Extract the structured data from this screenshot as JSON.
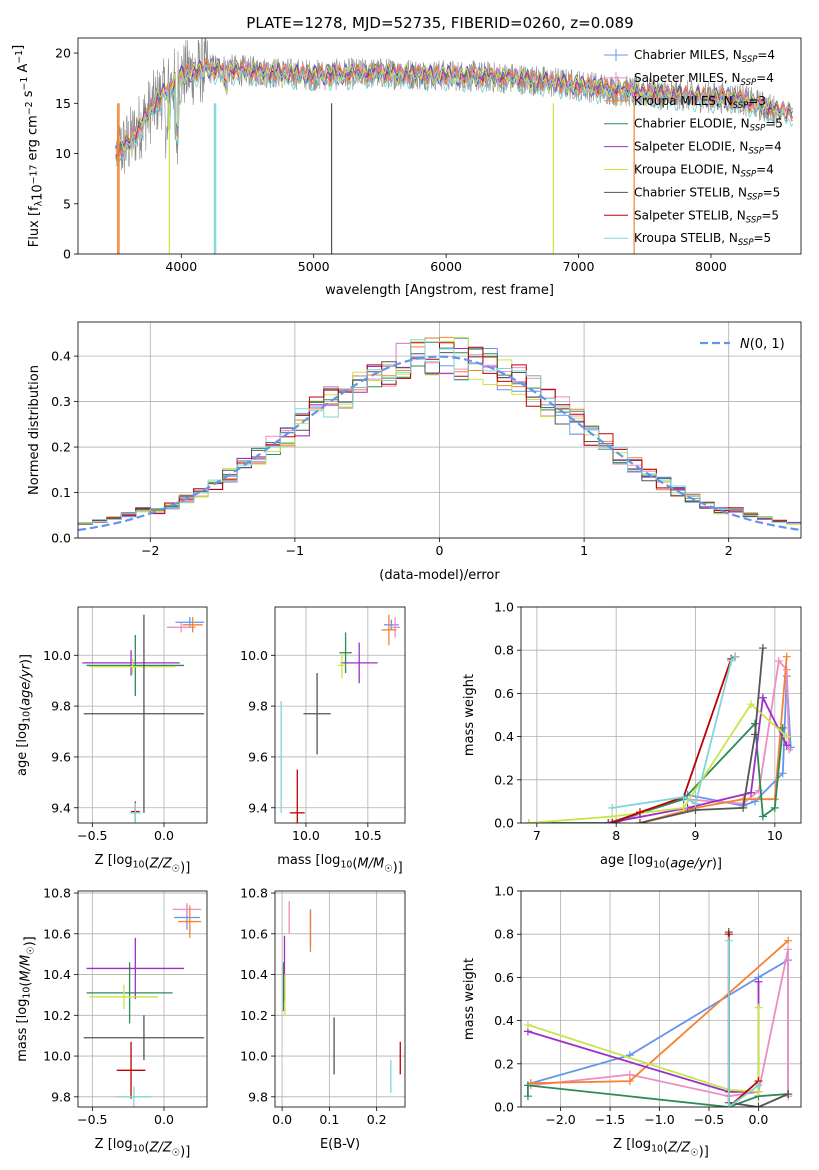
{
  "title": "PLATE=1278, MJD=52735, FIBERID=0260, z=0.089",
  "colors": [
    "#6495ed",
    "#f08dc0",
    "#f58231",
    "#2e8b57",
    "#9b30c8",
    "#c8e645",
    "#555555",
    "#c00000",
    "#80d6d6"
  ],
  "legend": {
    "entries": [
      {
        "name": "Chabrier MILES",
        "nssp": "4"
      },
      {
        "name": "Salpeter MILES",
        "nssp": "4"
      },
      {
        "name": "Kroupa MILES",
        "nssp": "3"
      },
      {
        "name": "Chabrier ELODIE",
        "nssp": "5"
      },
      {
        "name": "Salpeter ELODIE",
        "nssp": "4"
      },
      {
        "name": "Kroupa ELODIE",
        "nssp": "4"
      },
      {
        "name": "Chabrier STELIB",
        "nssp": "5"
      },
      {
        "name": "Salpeter STELIB",
        "nssp": "5"
      },
      {
        "name": "Kroupa STELIB",
        "nssp": "5"
      }
    ]
  },
  "chart_data": [
    {
      "id": "spectrum",
      "type": "line",
      "xlabel": "wavelength [Angstrom, rest frame]",
      "ylabel": "Flux [f",
      "xlim": [
        3220,
        8680
      ],
      "ylim": [
        0,
        21.5
      ],
      "xticks": [
        4000,
        5000,
        6000,
        7000,
        8000
      ],
      "yticks": [
        0,
        5,
        10,
        15,
        20
      ],
      "continuum_x": [
        3500,
        3600,
        3700,
        3800,
        3900,
        4000,
        4200,
        4500,
        5000,
        5500,
        6000,
        6500,
        7000,
        7500,
        8000,
        8200,
        8500
      ],
      "continuum_y": [
        10,
        11,
        13,
        15,
        16.5,
        17.8,
        18.5,
        18.2,
        17.8,
        18.0,
        17.8,
        17.5,
        16.8,
        16.0,
        15.6,
        15.5,
        14.2
      ]
    },
    {
      "id": "residuals",
      "type": "histogram",
      "xlabel": "(data-model)/error",
      "ylabel": "Normed distribution",
      "xlim": [
        -2.5,
        2.5
      ],
      "ylim": [
        0,
        0.475
      ],
      "xticks": [
        -2,
        -1,
        0,
        1,
        2
      ],
      "yticks": [
        0.0,
        0.1,
        0.2,
        0.3,
        0.4
      ],
      "legend_label": "N(0,1)",
      "bin_width": 0.1
    },
    {
      "id": "age_Z",
      "type": "errorbar",
      "xlabel": "Z [log10(Z/Z☉)]",
      "ylabel": "age  [log10(age/yr)]",
      "xlim": [
        -0.6,
        0.3
      ],
      "ylim": [
        9.34,
        10.19
      ],
      "xticks": [
        -0.5,
        0.0
      ],
      "yticks": [
        9.4,
        9.6,
        9.8,
        10.0
      ],
      "points": [
        {
          "x": 0.18,
          "y": 10.13,
          "ex": 0.1,
          "ey": 0.02
        },
        {
          "x": 0.12,
          "y": 10.11,
          "ex": 0.1,
          "ey": 0.02
        },
        {
          "x": 0.2,
          "y": 10.12,
          "ex": 0.07,
          "ey": 0.03
        },
        {
          "x": -0.2,
          "y": 9.96,
          "ex": 0.34,
          "ey": 0.12
        },
        {
          "x": -0.23,
          "y": 9.97,
          "ex": 0.34,
          "ey": 0.05
        },
        {
          "x": -0.22,
          "y": 9.955,
          "ex": 0.3,
          "ey": 0.03
        },
        {
          "x": -0.14,
          "y": 9.77,
          "ex": 0.42,
          "ey": 0.39
        },
        {
          "x": -0.2,
          "y": 9.385,
          "ex": 0.03,
          "ey": 0.04
        },
        {
          "x": -0.2,
          "y": 9.38,
          "ex": 0.04,
          "ey": 0.04
        }
      ]
    },
    {
      "id": "age_mass",
      "type": "errorbar",
      "xlabel": "mass [log10(M/M☉)]",
      "ylabel": "",
      "xlim": [
        9.75,
        10.8
      ],
      "ylim": [
        9.34,
        10.19
      ],
      "xticks": [
        10.0,
        10.5
      ],
      "yticks": [
        9.4,
        9.6,
        9.8,
        10.0
      ],
      "points": [
        {
          "x": 10.69,
          "y": 10.12,
          "ex": 0.06,
          "ey": 0.02
        },
        {
          "x": 10.72,
          "y": 10.11,
          "ex": 0.04,
          "ey": 0.04
        },
        {
          "x": 10.67,
          "y": 10.1,
          "ex": 0.06,
          "ey": 0.06
        },
        {
          "x": 10.32,
          "y": 10.01,
          "ex": 0.05,
          "ey": 0.08
        },
        {
          "x": 10.43,
          "y": 9.97,
          "ex": 0.15,
          "ey": 0.08
        },
        {
          "x": 10.29,
          "y": 9.96,
          "ex": 0.03,
          "ey": 0.05
        },
        {
          "x": 10.09,
          "y": 9.77,
          "ex": 0.11,
          "ey": 0.16
        },
        {
          "x": 9.93,
          "y": 9.38,
          "ex": 0.06,
          "ey": 0.17
        },
        {
          "x": 9.8,
          "y": 9.6,
          "ex": 0.02,
          "ey": 0.22
        }
      ]
    },
    {
      "id": "mw_age",
      "type": "line",
      "xlabel": "age  [log10(age/yr)]",
      "ylabel": "mass weight",
      "xlim": [
        6.8,
        10.33
      ],
      "ylim": [
        0,
        1.0
      ],
      "xticks": [
        7,
        8,
        9,
        10
      ],
      "yticks": [
        0.0,
        0.2,
        0.4,
        0.6,
        0.8,
        1.0
      ],
      "series": [
        {
          "x": [
            8.0,
            8.9,
            9.6,
            9.75,
            10.1,
            10.15,
            10.2
          ],
          "y": [
            0.0,
            0.13,
            0.08,
            0.1,
            0.23,
            0.68,
            0.35
          ]
        },
        {
          "x": [
            8.0,
            8.85,
            9.6,
            9.8,
            10.05,
            10.15,
            10.18
          ],
          "y": [
            0.01,
            0.11,
            0.09,
            0.15,
            0.75,
            0.71,
            0.34
          ]
        },
        {
          "x": [
            8.3,
            9.0,
            9.6,
            10.0,
            10.15
          ],
          "y": [
            0.0,
            0.07,
            0.11,
            0.11,
            0.77
          ]
        },
        {
          "x": [
            6.9,
            7.9,
            8.85,
            9.75,
            9.85,
            10.0,
            10.1
          ],
          "y": [
            0.0,
            0.0,
            0.11,
            0.46,
            0.03,
            0.07,
            0.44
          ]
        },
        {
          "x": [
            7.9,
            8.9,
            9.7,
            9.85,
            10.15
          ],
          "y": [
            0.0,
            0.07,
            0.14,
            0.58,
            0.36
          ]
        },
        {
          "x": [
            6.9,
            7.95,
            8.85,
            9.7,
            10.15
          ],
          "y": [
            0.0,
            0.03,
            0.07,
            0.55,
            0.4
          ]
        },
        {
          "x": [
            8.3,
            9.0,
            9.6,
            9.75,
            9.85
          ],
          "y": [
            0.0,
            0.06,
            0.07,
            0.41,
            0.81
          ]
        },
        {
          "x": [
            7.95,
            8.3,
            8.85,
            9.45,
            9.5
          ],
          "y": [
            0.0,
            0.05,
            0.12,
            0.76,
            0.77
          ]
        },
        {
          "x": [
            7.95,
            8.85,
            9.0,
            9.45,
            9.5
          ],
          "y": [
            0.07,
            0.12,
            0.09,
            0.75,
            0.77
          ]
        }
      ]
    },
    {
      "id": "mass_Z",
      "type": "errorbar",
      "xlabel": "Z [log10(Z/Z☉)]",
      "ylabel": "mass [log10(M/M☉)]",
      "xlim": [
        -0.6,
        0.3
      ],
      "ylim": [
        9.75,
        10.81
      ],
      "xticks": [
        -0.5,
        0.0
      ],
      "yticks": [
        9.8,
        10.0,
        10.2,
        10.4,
        10.6,
        10.8
      ],
      "points": [
        {
          "x": 0.16,
          "y": 10.68,
          "ex": 0.09,
          "ey": 0.06
        },
        {
          "x": 0.16,
          "y": 10.72,
          "ex": 0.1,
          "ey": 0.03
        },
        {
          "x": 0.18,
          "y": 10.66,
          "ex": 0.08,
          "ey": 0.08
        },
        {
          "x": -0.24,
          "y": 10.31,
          "ex": 0.3,
          "ey": 0.15
        },
        {
          "x": -0.2,
          "y": 10.43,
          "ex": 0.34,
          "ey": 0.15
        },
        {
          "x": -0.28,
          "y": 10.29,
          "ex": 0.24,
          "ey": 0.06
        },
        {
          "x": -0.14,
          "y": 10.09,
          "ex": 0.42,
          "ey": 0.11
        },
        {
          "x": -0.23,
          "y": 9.93,
          "ex": 0.1,
          "ey": 0.14
        },
        {
          "x": -0.21,
          "y": 9.8,
          "ex": 0.12,
          "ey": 0.05
        }
      ]
    },
    {
      "id": "mass_ebv",
      "type": "errorbar",
      "xlabel": "E(B-V)",
      "ylabel": "",
      "xlim": [
        -0.015,
        0.26
      ],
      "ylim": [
        9.75,
        10.81
      ],
      "xticks": [
        0.0,
        0.1,
        0.2
      ],
      "yticks": [
        9.8,
        10.0,
        10.2,
        10.4,
        10.6,
        10.8
      ],
      "points": [
        {
          "x": 0.06,
          "y": 10.63,
          "ey": 0.09
        },
        {
          "x": 0.015,
          "y": 10.68,
          "ey": 0.08
        },
        {
          "x": 0.06,
          "y": 10.61,
          "ey": 0.1
        },
        {
          "x": 0.003,
          "y": 10.34,
          "ey": 0.12
        },
        {
          "x": 0.005,
          "y": 10.43,
          "ey": 0.16
        },
        {
          "x": 0.006,
          "y": 10.3,
          "ey": 0.1
        },
        {
          "x": 0.11,
          "y": 10.05,
          "ey": 0.14
        },
        {
          "x": 0.25,
          "y": 9.99,
          "ey": 0.08
        },
        {
          "x": 0.23,
          "y": 9.9,
          "ey": 0.08
        }
      ]
    },
    {
      "id": "mw_Z",
      "type": "line",
      "xlabel": "Z [log10(Z/Z☉)]",
      "ylabel": "mass weight",
      "xlim": [
        -2.4,
        0.43
      ],
      "ylim": [
        0,
        1.0
      ],
      "xticks": [
        -2.0,
        -1.5,
        -1.0,
        -0.5,
        0.0
      ],
      "yticks": [
        0.0,
        0.2,
        0.4,
        0.6,
        0.8,
        1.0
      ],
      "series": [
        {
          "x": [
            -2.3,
            -1.3,
            0.0,
            0.3,
            0.3
          ],
          "y": [
            0.11,
            0.24,
            0.6,
            0.68,
            0.06
          ]
        },
        {
          "x": [
            -2.3,
            -1.3,
            -0.3,
            0.0,
            0.3,
            0.3
          ],
          "y": [
            0.1,
            0.15,
            0.05,
            0.07,
            0.73,
            0.05
          ]
        },
        {
          "x": [
            -2.3,
            -1.3,
            0.3
          ],
          "y": [
            0.11,
            0.12,
            0.77
          ]
        },
        {
          "x": [
            -2.33,
            -2.33,
            -0.3,
            0.0,
            0.3
          ],
          "y": [
            0.05,
            0.1,
            0.0,
            0.05,
            0.06
          ]
        },
        {
          "x": [
            -2.33,
            -0.3,
            0.0,
            0.0
          ],
          "y": [
            0.35,
            0.07,
            0.07,
            0.58
          ]
        },
        {
          "x": [
            -2.33,
            -0.3,
            0.0,
            0.0
          ],
          "y": [
            0.38,
            0.08,
            0.07,
            0.46
          ]
        },
        {
          "x": [
            -0.3,
            -0.3,
            0.0,
            0.3
          ],
          "y": [
            0.81,
            0.02,
            0.0,
            0.06
          ]
        },
        {
          "x": [
            -0.3,
            -0.3,
            0.0
          ],
          "y": [
            0.8,
            0.0,
            0.12
          ]
        },
        {
          "x": [
            -0.3,
            -0.3,
            0.0
          ],
          "y": [
            0.77,
            0.0,
            0.1
          ]
        }
      ]
    }
  ]
}
